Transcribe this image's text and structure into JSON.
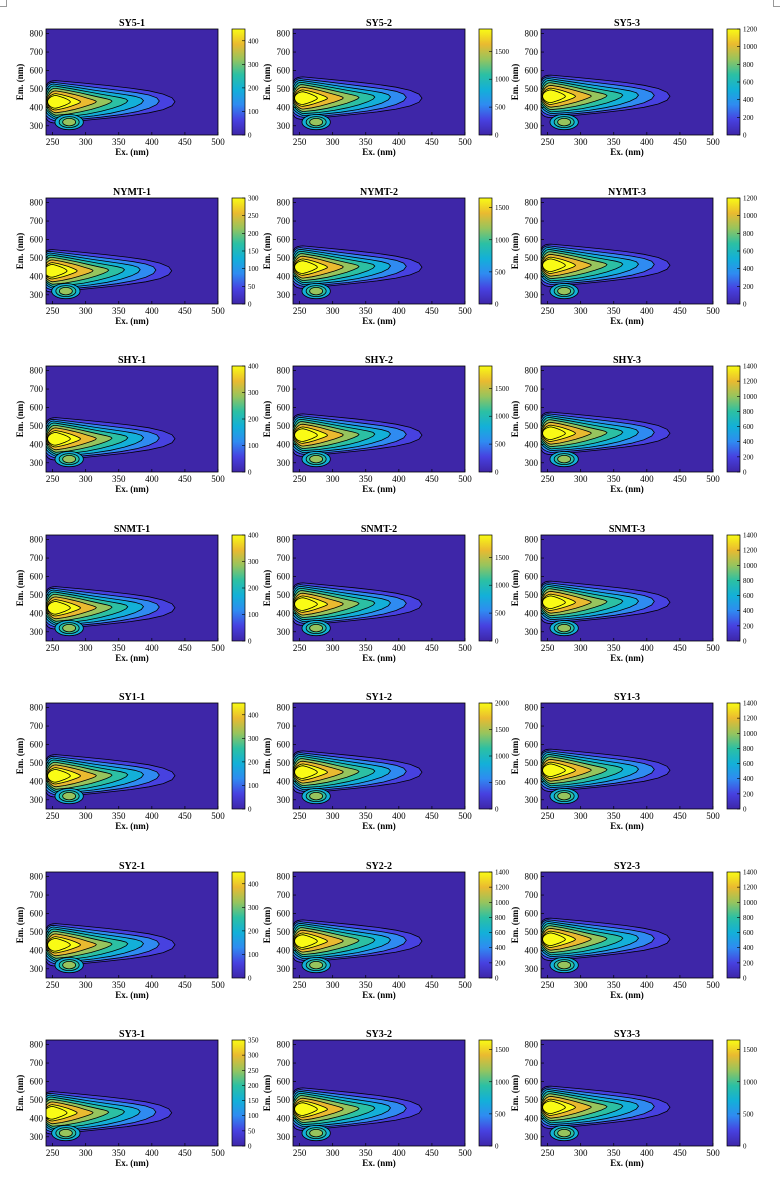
{
  "chart_data": {
    "type": "contour",
    "layout": "7 rows x 3 columns of excitation-emission contour maps",
    "xlabel": "Ex. (nm)",
    "ylabel": "Em. (nm)",
    "xlim": [
      240,
      500
    ],
    "ylim": [
      250,
      825
    ],
    "xticks": [
      250,
      300,
      350,
      400,
      450,
      500
    ],
    "yticks": [
      300,
      400,
      500,
      600,
      700,
      800
    ],
    "colormap": [
      "#3e26a8",
      "#4741e0",
      "#2f8bf1",
      "#13b0d8",
      "#2cc0a3",
      "#97c45d",
      "#eaba30",
      "#f9fb15"
    ],
    "background_color": "#3e26a8",
    "panels": [
      {
        "title": "SY5-1",
        "cbar_max": 450,
        "cbar_ticks": [
          0,
          100,
          200,
          300,
          400
        ],
        "peak_ex": 255,
        "peak_em": 430
      },
      {
        "title": "SY5-2",
        "cbar_max": 1900,
        "cbar_ticks": [
          0,
          500,
          1000,
          1500
        ],
        "peak_ex": 255,
        "peak_em": 450
      },
      {
        "title": "SY5-3",
        "cbar_max": 1200,
        "cbar_ticks": [
          0,
          200,
          400,
          600,
          800,
          1000,
          1200
        ],
        "peak_ex": 255,
        "peak_em": 460
      },
      {
        "title": "NYMT-1",
        "cbar_max": 300,
        "cbar_ticks": [
          0,
          50,
          100,
          150,
          200,
          250,
          300
        ],
        "peak_ex": 250,
        "peak_em": 430
      },
      {
        "title": "NYMT-2",
        "cbar_max": 1650,
        "cbar_ticks": [
          0,
          500,
          1000,
          1500
        ],
        "peak_ex": 255,
        "peak_em": 450
      },
      {
        "title": "NYMT-3",
        "cbar_max": 1200,
        "cbar_ticks": [
          0,
          200,
          400,
          600,
          800,
          1000,
          1200
        ],
        "peak_ex": 255,
        "peak_em": 460
      },
      {
        "title": "SHY-1",
        "cbar_max": 400,
        "cbar_ticks": [
          0,
          100,
          200,
          300,
          400
        ],
        "peak_ex": 255,
        "peak_em": 430
      },
      {
        "title": "SHY-2",
        "cbar_max": 1900,
        "cbar_ticks": [
          0,
          500,
          1000,
          1500
        ],
        "peak_ex": 255,
        "peak_em": 450
      },
      {
        "title": "SHY-3",
        "cbar_max": 1400,
        "cbar_ticks": [
          0,
          200,
          400,
          600,
          800,
          1000,
          1200,
          1400
        ],
        "peak_ex": 255,
        "peak_em": 460
      },
      {
        "title": "SNMT-1",
        "cbar_max": 400,
        "cbar_ticks": [
          0,
          100,
          200,
          300,
          400
        ],
        "peak_ex": 255,
        "peak_em": 430
      },
      {
        "title": "SNMT-2",
        "cbar_max": 1900,
        "cbar_ticks": [
          0,
          500,
          1000,
          1500
        ],
        "peak_ex": 255,
        "peak_em": 450
      },
      {
        "title": "SNMT-3",
        "cbar_max": 1400,
        "cbar_ticks": [
          0,
          200,
          400,
          600,
          800,
          1000,
          1200,
          1400
        ],
        "peak_ex": 255,
        "peak_em": 460
      },
      {
        "title": "SY1-1",
        "cbar_max": 450,
        "cbar_ticks": [
          0,
          100,
          200,
          300,
          400
        ],
        "peak_ex": 255,
        "peak_em": 430
      },
      {
        "title": "SY1-2",
        "cbar_max": 2000,
        "cbar_ticks": [
          0,
          500,
          1000,
          1500,
          2000
        ],
        "peak_ex": 255,
        "peak_em": 450
      },
      {
        "title": "SY1-3",
        "cbar_max": 1400,
        "cbar_ticks": [
          0,
          200,
          400,
          600,
          800,
          1000,
          1200,
          1400
        ],
        "peak_ex": 255,
        "peak_em": 460
      },
      {
        "title": "SY2-1",
        "cbar_max": 450,
        "cbar_ticks": [
          0,
          100,
          200,
          300,
          400
        ],
        "peak_ex": 255,
        "peak_em": 430
      },
      {
        "title": "SY2-2",
        "cbar_max": 1400,
        "cbar_ticks": [
          0,
          200,
          400,
          600,
          800,
          1000,
          1200,
          1400
        ],
        "peak_ex": 255,
        "peak_em": 450
      },
      {
        "title": "SY2-3",
        "cbar_max": 1400,
        "cbar_ticks": [
          0,
          200,
          400,
          600,
          800,
          1000,
          1200,
          1400
        ],
        "peak_ex": 255,
        "peak_em": 460
      },
      {
        "title": "SY3-1",
        "cbar_max": 350,
        "cbar_ticks": [
          0,
          50,
          100,
          150,
          200,
          250,
          300,
          350
        ],
        "peak_ex": 250,
        "peak_em": 430
      },
      {
        "title": "SY3-2",
        "cbar_max": 1650,
        "cbar_ticks": [
          0,
          500,
          1000,
          1500
        ],
        "peak_ex": 255,
        "peak_em": 450
      },
      {
        "title": "SY3-3",
        "cbar_max": 1650,
        "cbar_ticks": [
          0,
          500,
          1000,
          1500
        ],
        "peak_ex": 255,
        "peak_em": 460
      }
    ]
  }
}
